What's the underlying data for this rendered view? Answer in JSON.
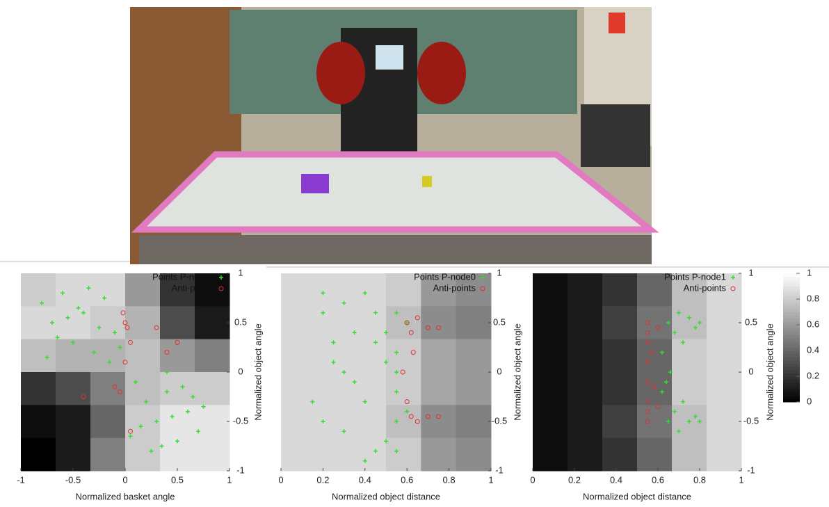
{
  "chart_data": [
    {
      "type": "scatter",
      "xlabel": "Normalized basket angle",
      "ylabel": "Normalized object angle",
      "xlim": [
        -1,
        1
      ],
      "ylim": [
        -1,
        1
      ],
      "xticks": [
        -1,
        -0.5,
        0,
        0.5,
        1
      ],
      "yticks": [
        -1,
        -0.5,
        0,
        0.5,
        1
      ],
      "heatmap": [
        [
          0.8,
          0.85,
          0.85,
          0.6,
          0.2,
          0.05
        ],
        [
          0.85,
          0.85,
          0.8,
          0.7,
          0.3,
          0.1
        ],
        [
          0.75,
          0.7,
          0.7,
          0.75,
          0.6,
          0.5
        ],
        [
          0.2,
          0.3,
          0.5,
          0.75,
          0.8,
          0.8
        ],
        [
          0.05,
          0.1,
          0.4,
          0.8,
          0.9,
          0.9
        ],
        [
          0.0,
          0.1,
          0.5,
          0.8,
          0.9,
          0.9
        ]
      ],
      "series": [
        {
          "name": "Points P-node2",
          "color": "#33dd33",
          "marker": "plus",
          "x": [
            -0.8,
            -0.7,
            -0.6,
            -0.5,
            -0.4,
            -0.3,
            -0.2,
            -0.1,
            -0.75,
            -0.55,
            -0.35,
            -0.15,
            -0.65,
            -0.45,
            -0.25,
            -0.05,
            0.1,
            0.2,
            0.3,
            0.4,
            0.5,
            0.6,
            0.7,
            0.15,
            0.35,
            0.55,
            0.75,
            0.25,
            0.45,
            0.65,
            0.05,
            0.4
          ],
          "values": [
            0.7,
            0.5,
            0.8,
            0.3,
            0.6,
            0.2,
            0.75,
            0.4,
            0.15,
            0.55,
            0.85,
            0.1,
            0.35,
            0.65,
            0.45,
            0.25,
            -0.1,
            -0.3,
            -0.5,
            -0.2,
            -0.7,
            -0.4,
            -0.6,
            -0.55,
            -0.75,
            -0.15,
            -0.35,
            -0.8,
            -0.45,
            -0.25,
            -0.65,
            0.0
          ]
        },
        {
          "name": "Anti-points",
          "color": "#e03030",
          "marker": "circle",
          "x": [
            0.0,
            0.02,
            -0.02,
            0.05,
            0.0,
            -0.1,
            -0.05,
            0.5,
            0.3,
            0.4,
            -0.4,
            0.05
          ],
          "values": [
            0.5,
            0.45,
            0.6,
            0.3,
            0.1,
            -0.15,
            -0.2,
            0.3,
            0.45,
            0.2,
            -0.25,
            -0.6
          ]
        }
      ]
    },
    {
      "type": "scatter",
      "xlabel": "Normalized object distance",
      "ylabel": "Normalized object angle",
      "xlim": [
        0,
        1
      ],
      "ylim": [
        -1,
        1
      ],
      "xticks": [
        0,
        0.2,
        0.4,
        0.6,
        0.8,
        1
      ],
      "yticks": [
        -1,
        -0.5,
        0,
        0.5,
        1
      ],
      "heatmap": [
        [
          0.85,
          0.85,
          0.85,
          0.8,
          0.6,
          0.55
        ],
        [
          0.85,
          0.85,
          0.85,
          0.75,
          0.55,
          0.5
        ],
        [
          0.85,
          0.85,
          0.85,
          0.8,
          0.65,
          0.6
        ],
        [
          0.85,
          0.85,
          0.85,
          0.8,
          0.65,
          0.6
        ],
        [
          0.85,
          0.85,
          0.85,
          0.75,
          0.55,
          0.5
        ],
        [
          0.85,
          0.85,
          0.85,
          0.8,
          0.6,
          0.55
        ]
      ],
      "series": [
        {
          "name": "Points P-node0",
          "color": "#33dd33",
          "marker": "plus",
          "x": [
            0.2,
            0.3,
            0.4,
            0.5,
            0.55,
            0.55,
            0.55,
            0.55,
            0.55,
            0.25,
            0.35,
            0.45,
            0.6,
            0.15,
            0.3,
            0.45,
            0.2,
            0.4,
            0.5,
            0.35,
            0.25,
            0.6,
            0.55,
            0.45,
            0.3,
            0.2,
            0.5,
            0.4
          ],
          "values": [
            0.6,
            0.7,
            0.8,
            0.4,
            0.6,
            0.2,
            -0.2,
            -0.5,
            0.0,
            0.1,
            -0.1,
            0.3,
            0.5,
            -0.3,
            -0.6,
            -0.8,
            -0.5,
            -0.3,
            -0.7,
            0.4,
            0.3,
            -0.4,
            -0.8,
            0.6,
            0.0,
            0.8,
            0.1,
            -0.9
          ]
        },
        {
          "name": "Anti-points",
          "color": "#e03030",
          "marker": "circle",
          "x": [
            0.6,
            0.62,
            0.65,
            0.7,
            0.75,
            0.63,
            0.6,
            0.62,
            0.65,
            0.7,
            0.75,
            0.58
          ],
          "values": [
            0.5,
            0.4,
            0.55,
            0.45,
            0.45,
            0.2,
            -0.3,
            -0.45,
            -0.5,
            -0.45,
            -0.45,
            0.0
          ]
        }
      ]
    },
    {
      "type": "scatter",
      "xlabel": "Normalized object distance",
      "ylabel": "Normalized object angle",
      "xlim": [
        0,
        1
      ],
      "ylim": [
        -1,
        1
      ],
      "xticks": [
        0,
        0.2,
        0.4,
        0.6,
        0.8,
        1
      ],
      "yticks": [
        -1,
        -0.5,
        0,
        0.5,
        1
      ],
      "heatmap": [
        [
          0.05,
          0.1,
          0.2,
          0.4,
          0.75,
          0.85
        ],
        [
          0.05,
          0.1,
          0.25,
          0.45,
          0.75,
          0.85
        ],
        [
          0.05,
          0.1,
          0.2,
          0.4,
          0.8,
          0.85
        ],
        [
          0.05,
          0.1,
          0.2,
          0.4,
          0.8,
          0.85
        ],
        [
          0.05,
          0.1,
          0.25,
          0.45,
          0.75,
          0.85
        ],
        [
          0.05,
          0.1,
          0.2,
          0.4,
          0.75,
          0.85
        ]
      ],
      "colorbar": {
        "lim": [
          0,
          1
        ],
        "ticks": [
          0,
          0.2,
          0.4,
          0.6,
          0.8,
          1
        ]
      },
      "series": [
        {
          "name": "Points P-node1",
          "color": "#33dd33",
          "marker": "plus",
          "x": [
            0.65,
            0.7,
            0.75,
            0.8,
            0.68,
            0.72,
            0.78,
            0.62,
            0.65,
            0.7,
            0.75,
            0.8,
            0.68,
            0.72,
            0.78,
            0.62,
            0.66,
            0.64
          ],
          "values": [
            0.5,
            0.6,
            0.55,
            0.5,
            0.4,
            0.3,
            0.45,
            0.2,
            -0.5,
            -0.6,
            -0.5,
            -0.5,
            -0.4,
            -0.3,
            -0.45,
            -0.2,
            0.0,
            -0.1
          ]
        },
        {
          "name": "Anti-points",
          "color": "#e03030",
          "marker": "circle",
          "x": [
            0.55,
            0.55,
            0.55,
            0.55,
            0.55,
            0.55,
            0.55,
            0.55,
            0.57,
            0.6,
            0.6,
            0.58
          ],
          "values": [
            0.5,
            0.3,
            0.1,
            -0.1,
            -0.3,
            -0.5,
            0.4,
            -0.4,
            0.2,
            0.45,
            -0.35,
            -0.15
          ]
        }
      ]
    }
  ]
}
